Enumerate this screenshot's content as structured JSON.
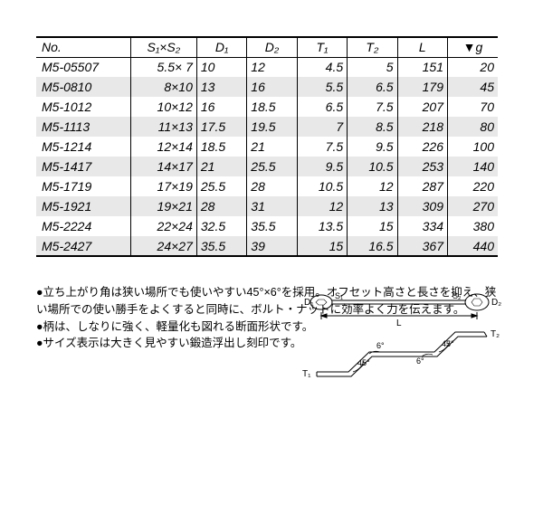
{
  "table": {
    "header": {
      "no": "No.",
      "s": "S₁×S₂",
      "d1": "D₁",
      "d2": "D₂",
      "t1": "T₁",
      "t2": "T₂",
      "l": "L",
      "g": "▼g"
    },
    "rows": [
      {
        "no": "M5-05507",
        "s": "5.5× 7",
        "d1": "10",
        "d2": "12",
        "t1": "4.5",
        "t2": "5",
        "l": "151",
        "g": "20"
      },
      {
        "no": "M5-0810",
        "s": "8×10",
        "d1": "13",
        "d2": "16",
        "t1": "5.5",
        "t2": "6.5",
        "l": "179",
        "g": "45"
      },
      {
        "no": "M5-1012",
        "s": "10×12",
        "d1": "16",
        "d2": "18.5",
        "t1": "6.5",
        "t2": "7.5",
        "l": "207",
        "g": "70"
      },
      {
        "no": "M5-1113",
        "s": "11×13",
        "d1": "17.5",
        "d2": "19.5",
        "t1": "7",
        "t2": "8.5",
        "l": "218",
        "g": "80"
      },
      {
        "no": "M5-1214",
        "s": "12×14",
        "d1": "18.5",
        "d2": "21",
        "t1": "7.5",
        "t2": "9.5",
        "l": "226",
        "g": "100"
      },
      {
        "no": "M5-1417",
        "s": "14×17",
        "d1": "21",
        "d2": "25.5",
        "t1": "9.5",
        "t2": "10.5",
        "l": "253",
        "g": "140"
      },
      {
        "no": "M5-1719",
        "s": "17×19",
        "d1": "25.5",
        "d2": "28",
        "t1": "10.5",
        "t2": "12",
        "l": "287",
        "g": "220"
      },
      {
        "no": "M5-1921",
        "s": "19×21",
        "d1": "28",
        "d2": "31",
        "t1": "12",
        "t2": "13",
        "l": "309",
        "g": "270"
      },
      {
        "no": "M5-2224",
        "s": "22×24",
        "d1": "32.5",
        "d2": "35.5",
        "t1": "13.5",
        "t2": "15",
        "l": "334",
        "g": "380"
      },
      {
        "no": "M5-2427",
        "s": "24×27",
        "d1": "35.5",
        "d2": "39",
        "t1": "15",
        "t2": "16.5",
        "l": "367",
        "g": "440"
      }
    ],
    "alt_color": "#e8e8e8"
  },
  "notes": {
    "b1": "●立ち上がり角は狭い場所でも使いやすい45°×6°を採用。オフセット高さと長さを抑え、狭い場所での使い勝手をよくすると同時に、ボルト・ナットに効率よく力を伝えます。",
    "b2": "●柄は、しなりに強く、軽量化も図れる断面形状です。",
    "b3": "●サイズ表示は大きく見やすい鍛造浮出し刻印です。"
  },
  "diagram_labels": {
    "d1": "D₁",
    "s1": "S₁",
    "s2": "S₂",
    "d2": "D₂",
    "l": "L",
    "t1": "T₁",
    "t2": "T₂",
    "a45": "45°",
    "a6": "6°"
  }
}
